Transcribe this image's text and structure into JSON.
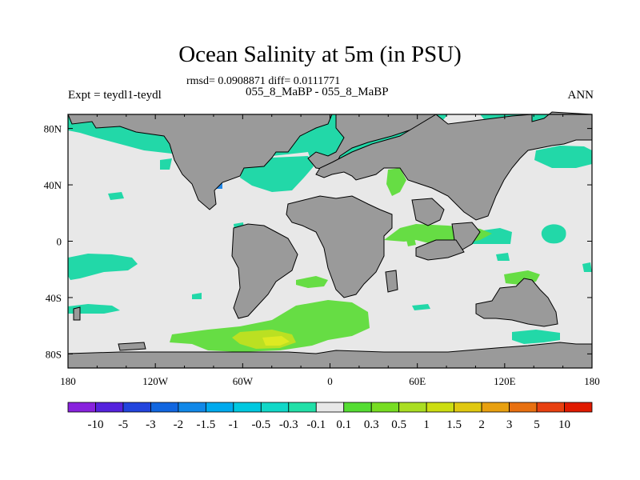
{
  "title": "Ocean Salinity at 5m (in PSU)",
  "stats": "rmsd= 0.0908871 diff= 0.0111771",
  "left_label": "Expt = teydl1-teydl",
  "subtitle": "055_8_MaBP - 055_8_MaBP",
  "right_label": "ANN",
  "axes": {
    "lon_ticks": [
      "180",
      "120W",
      "60W",
      "0",
      "60E",
      "120E",
      "180"
    ],
    "lat_ticks": [
      "80N",
      "40N",
      "0",
      "40S",
      "80S"
    ]
  },
  "colors": {
    "land": "#9a9a9a",
    "neutral": "#e8e8e8",
    "teal": "#22d8a8",
    "light_green": "#66dd44",
    "yellow_green": "#bbe022",
    "blue": "#2288e8"
  },
  "colorbar": {
    "labels": [
      "-10",
      "-5",
      "-3",
      "-2",
      "-1.5",
      "-1",
      "-0.5",
      "-0.3",
      "-0.1",
      "0.1",
      "0.3",
      "0.5",
      "1",
      "1.5",
      "2",
      "3",
      "5",
      "10"
    ],
    "colors": [
      "#8822dd",
      "#5522dd",
      "#2244dd",
      "#1166e0",
      "#1188e8",
      "#00aaee",
      "#00c8e0",
      "#11d8c8",
      "#22e0a8",
      "#e8e8e8",
      "#55dd33",
      "#77dd22",
      "#aade22",
      "#ccdd11",
      "#e0c810",
      "#e8a010",
      "#e87010",
      "#e84010",
      "#e01a00"
    ]
  }
}
